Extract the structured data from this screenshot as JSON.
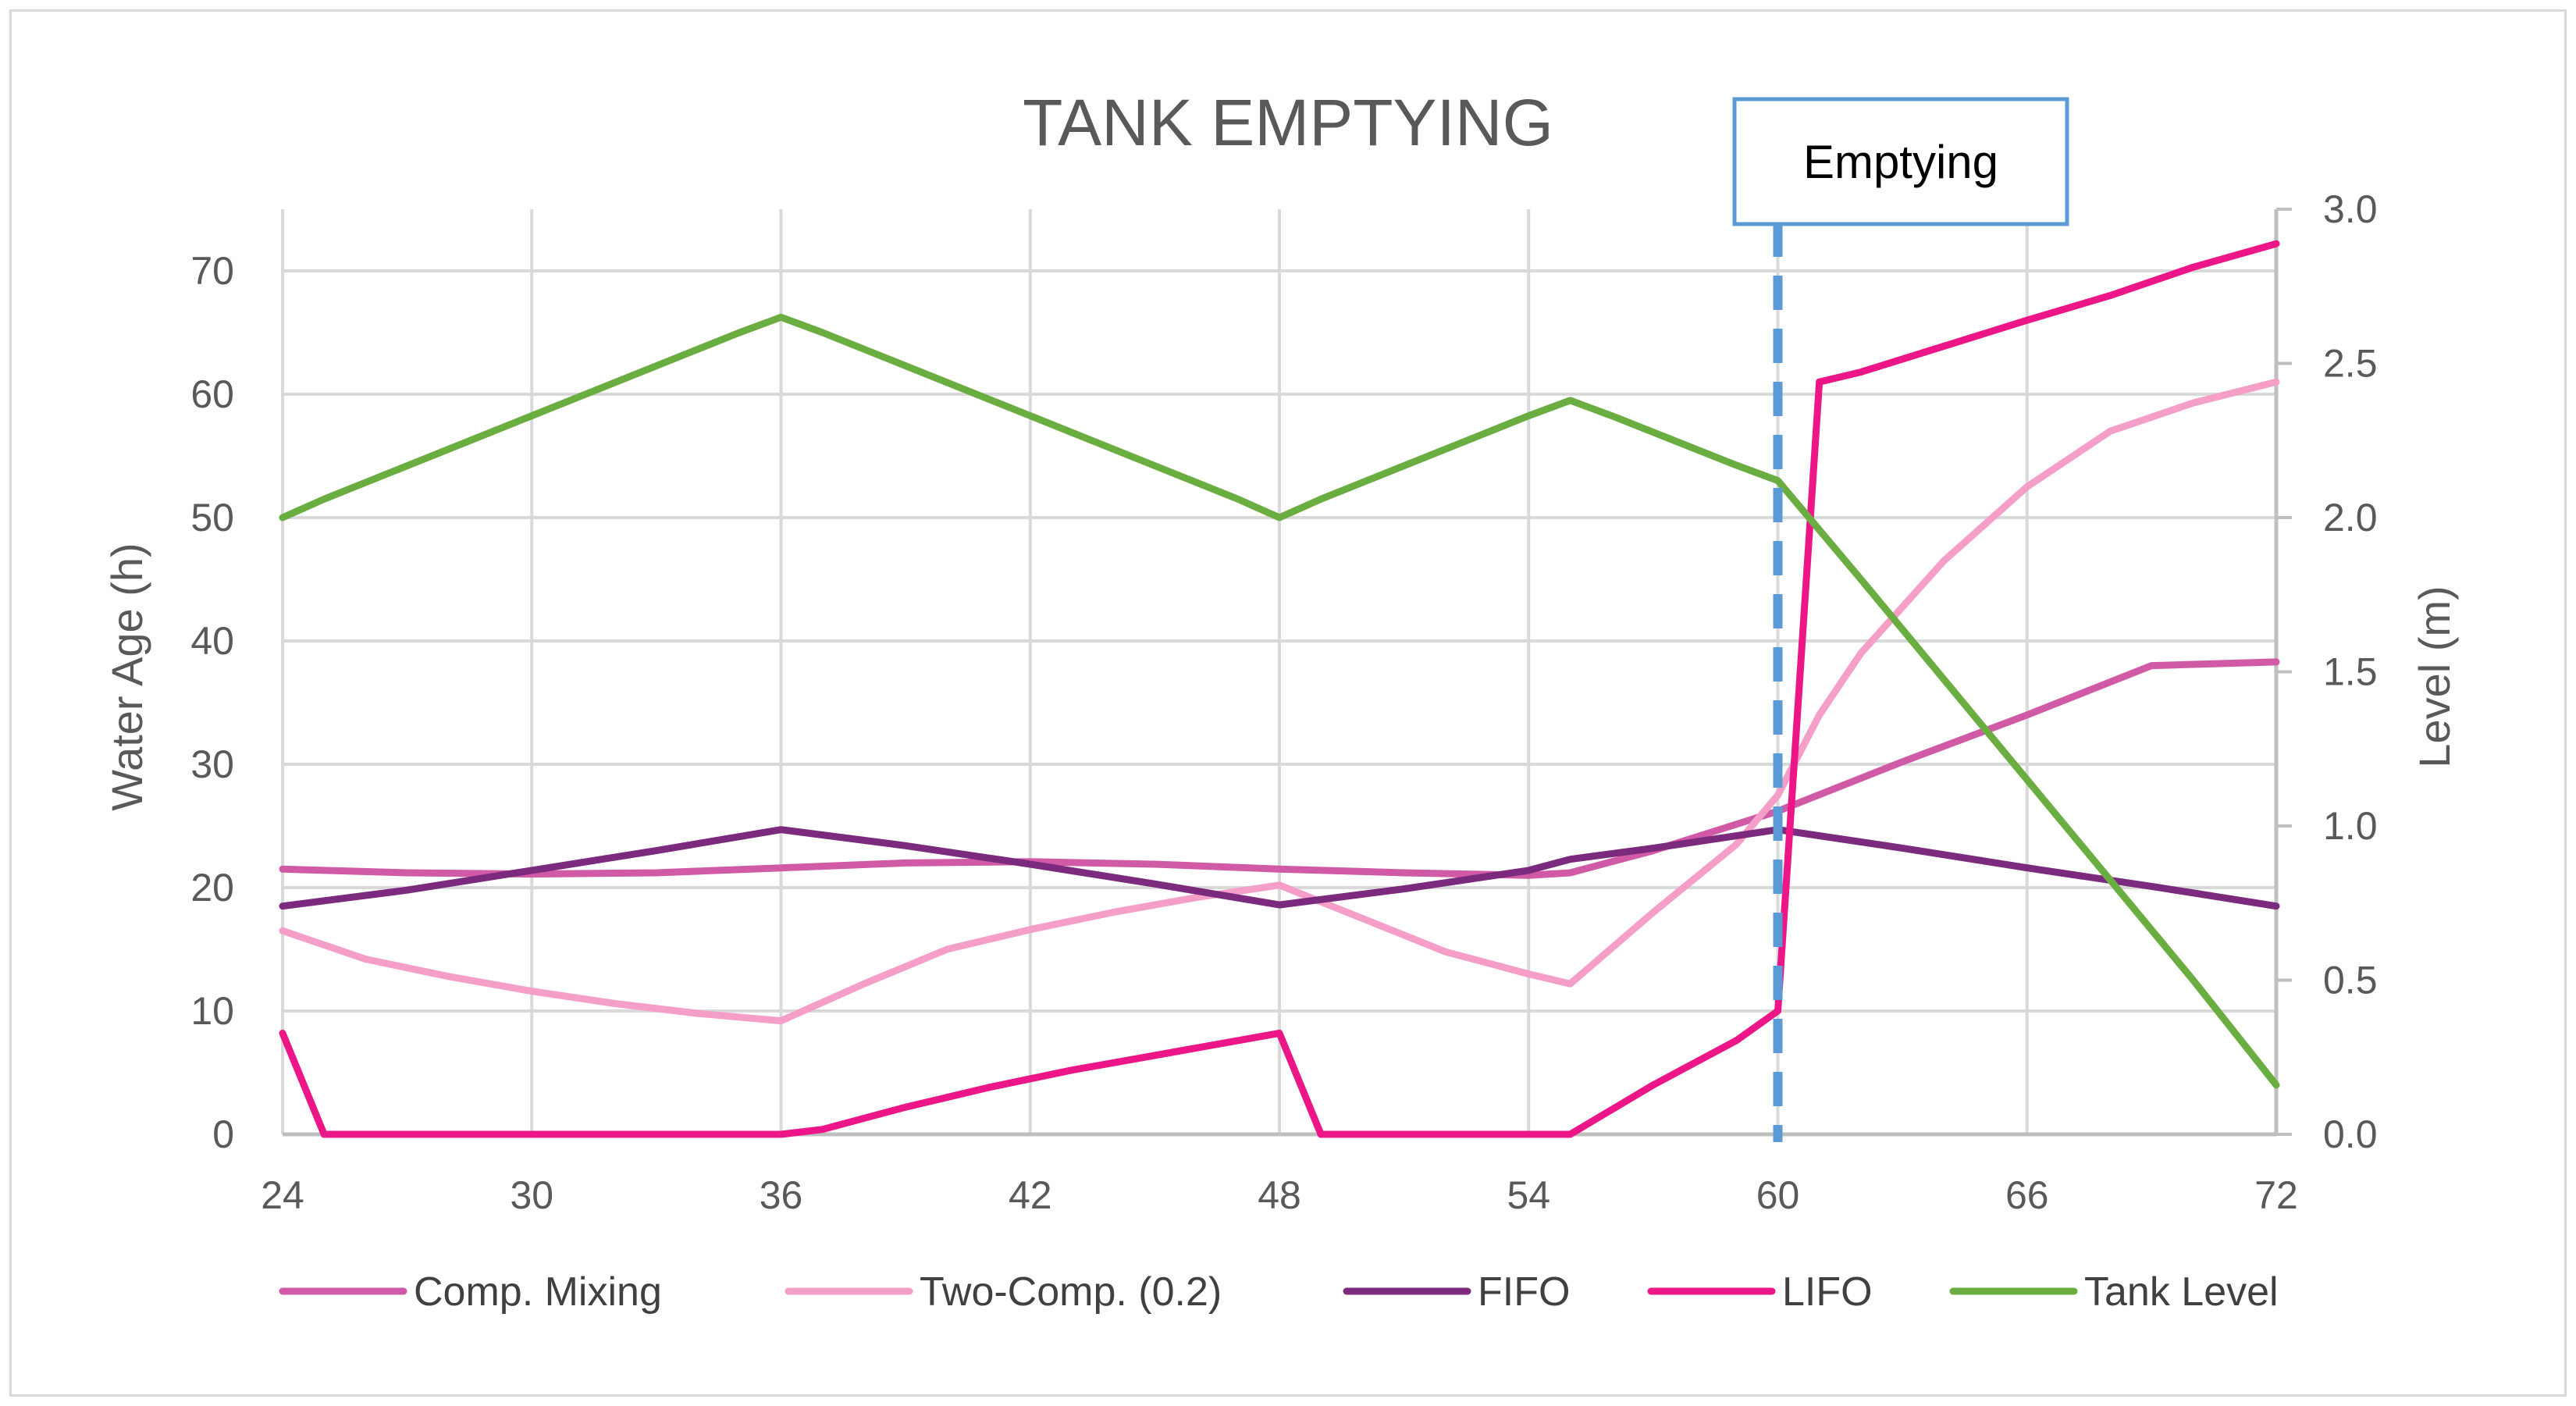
{
  "chart_data": {
    "type": "line",
    "title": "TANK EMPTYING",
    "xlabel": "",
    "ylabel": "Water Age (h)",
    "y2label": "Level (m)",
    "xlim": [
      24,
      72
    ],
    "xticks": [
      "24",
      "30",
      "36",
      "42",
      "48",
      "54",
      "60",
      "66",
      "72"
    ],
    "ylim": [
      0,
      75
    ],
    "yticks": [
      "0",
      "10",
      "20",
      "30",
      "40",
      "50",
      "60",
      "70"
    ],
    "y2lim": [
      0,
      3.0
    ],
    "y2ticks": [
      "0.0",
      "0.5",
      "1.0",
      "1.5",
      "2.0",
      "2.5",
      "3.0"
    ],
    "grid": true,
    "legend_position": "bottom",
    "annotation": {
      "label": "Emptying",
      "x": 60
    },
    "series": [
      {
        "name": "Comp. Mixing",
        "axis": "left",
        "color": "#d05aa6",
        "x": [
          24,
          27,
          30,
          33,
          36,
          39,
          42,
          45,
          48,
          51,
          54,
          55,
          57,
          60,
          63,
          66,
          69,
          72
        ],
        "values": [
          21.5,
          21.2,
          21.1,
          21.2,
          21.6,
          22.0,
          22.1,
          21.9,
          21.5,
          21.2,
          21.0,
          21.2,
          23.0,
          26.2,
          30.2,
          34.0,
          38.0,
          38.3
        ]
      },
      {
        "name": "Two-Comp. (0.2)",
        "axis": "left",
        "color": "#f59fc8",
        "x": [
          24,
          26,
          28,
          30,
          32,
          34,
          36,
          38,
          40,
          42,
          44,
          46,
          48,
          50,
          52,
          54,
          55,
          57,
          59,
          60,
          61,
          62,
          64,
          66,
          68,
          70,
          72
        ],
        "values": [
          16.5,
          14.2,
          12.8,
          11.6,
          10.6,
          9.8,
          9.2,
          12.2,
          15.0,
          16.6,
          18.0,
          19.2,
          20.2,
          17.5,
          14.8,
          13.0,
          12.2,
          18.0,
          23.5,
          27.5,
          34.0,
          39.0,
          46.5,
          52.5,
          57.0,
          59.3,
          61.0
        ]
      },
      {
        "name": "FIFO",
        "axis": "left",
        "color": "#7b2a7e",
        "x": [
          24,
          27,
          30,
          33,
          36,
          39,
          42,
          45,
          48,
          51,
          54,
          55,
          57,
          60,
          63,
          66,
          69,
          72
        ],
        "values": [
          18.5,
          19.8,
          21.4,
          23.0,
          24.7,
          23.4,
          21.9,
          20.3,
          18.6,
          19.9,
          21.4,
          22.3,
          23.2,
          24.7,
          23.2,
          21.6,
          20.1,
          18.5
        ]
      },
      {
        "name": "LIFO",
        "axis": "left",
        "color": "#ec1688",
        "x": [
          24,
          25,
          30,
          36,
          37,
          39,
          41,
          43,
          45,
          48,
          49,
          52,
          55,
          57,
          59,
          60,
          61,
          62,
          66,
          68,
          70,
          72
        ],
        "values": [
          8.2,
          0,
          0,
          0,
          0.4,
          2.2,
          3.8,
          5.2,
          6.4,
          8.2,
          0,
          0,
          0,
          4.0,
          7.6,
          10.0,
          61.0,
          61.8,
          66.0,
          68.0,
          70.3,
          72.2
        ]
      },
      {
        "name": "Tank Level",
        "axis": "right",
        "color": "#6aad40",
        "x": [
          24,
          25,
          30,
          35,
          36,
          37,
          42,
          47,
          48,
          49,
          54,
          55,
          56,
          59,
          60,
          61,
          62,
          66,
          70,
          72
        ],
        "values": [
          2.0,
          2.06,
          2.33,
          2.6,
          2.65,
          2.6,
          2.33,
          2.06,
          2.0,
          2.06,
          2.33,
          2.38,
          2.33,
          2.17,
          2.12,
          1.96,
          1.8,
          1.15,
          0.5,
          0.16
        ]
      }
    ]
  }
}
